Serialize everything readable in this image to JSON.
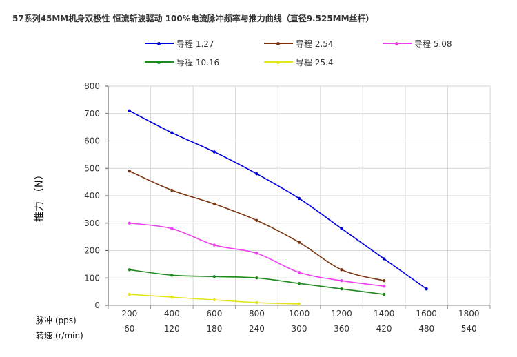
{
  "chart_data": {
    "type": "line",
    "title": "57系列45MM机身双极性 恒流斩波驱动 100%电流脉冲频率与推力曲线（直径9.525MM丝杆）",
    "ylabel": "推力 （N）",
    "xrow1_label": "脉冲   (pps)",
    "xrow2_label": "转速  (r/min)",
    "categories": [
      "200",
      "400",
      "600",
      "800",
      "1000",
      "1200",
      "1400",
      "1600",
      "1800"
    ],
    "categories_speed": [
      "60",
      "120",
      "180",
      "240",
      "300",
      "360",
      "420",
      "480",
      "540"
    ],
    "x_values": [
      200,
      400,
      600,
      800,
      1000,
      1200,
      1400,
      1600,
      1800
    ],
    "ylim": [
      0,
      800
    ],
    "yticks": [
      0,
      100,
      200,
      300,
      400,
      500,
      600,
      700,
      800
    ],
    "grid": true,
    "legend_position": "top",
    "series": [
      {
        "name": "导程 1.27",
        "color": "#0000dd",
        "values": [
          710,
          630,
          560,
          480,
          390,
          280,
          170,
          60,
          null
        ]
      },
      {
        "name": "导程 2.54",
        "color": "#7b3410",
        "values": [
          490,
          420,
          370,
          310,
          230,
          130,
          90,
          null,
          null
        ]
      },
      {
        "name": "导程  5.08",
        "color": "#ee3ff2",
        "values": [
          300,
          280,
          220,
          190,
          120,
          90,
          70,
          null,
          null
        ]
      },
      {
        "name": "导程  10.16",
        "color": "#1c8a1c",
        "values": [
          130,
          110,
          105,
          100,
          80,
          60,
          40,
          null,
          null
        ]
      },
      {
        "name": "导程  25.4",
        "color": "#e4e41e",
        "values": [
          40,
          30,
          20,
          10,
          5,
          null,
          null,
          null,
          null
        ]
      }
    ]
  }
}
